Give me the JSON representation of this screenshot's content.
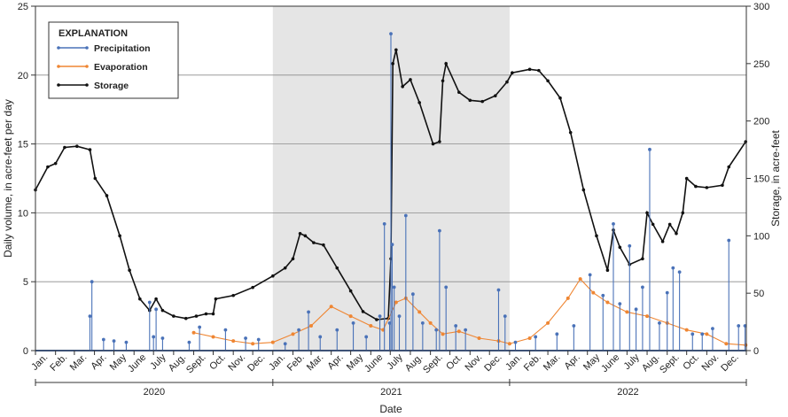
{
  "chart_data": {
    "type": "line",
    "xlabel": "Date",
    "ylabel_left": "Daily volume, in acre-feet per day",
    "ylabel_right": "Storage, in acre-feet",
    "ylim_left": [
      0,
      25
    ],
    "ylim_right": [
      0,
      300
    ],
    "yticks_left": [
      "0",
      "5",
      "10",
      "15",
      "20",
      "25"
    ],
    "yticks_right": [
      "0",
      "50",
      "100",
      "150",
      "200",
      "250",
      "300"
    ],
    "grid": "horizontal",
    "shaded_period": [
      "2021-01-01",
      "2022-01-01"
    ],
    "month_labels": [
      "Jan.",
      "Feb.",
      "Mar.",
      "Apr.",
      "May",
      "June",
      "July",
      "Aug.",
      "Sept.",
      "Oct.",
      "Nov.",
      "Dec."
    ],
    "year_labels": [
      "2020",
      "2021",
      "2022"
    ],
    "legend": {
      "title": "EXPLANATION",
      "position": "top-left",
      "entries": [
        "Precipitation",
        "Evaporation",
        "Storage"
      ]
    },
    "colors": {
      "Precipitation": "#4a72b8",
      "Evaporation": "#ef8633",
      "Storage": "#111111",
      "shade": "#e5e5e5"
    },
    "series": [
      {
        "name": "Storage",
        "axis": "right",
        "x": [
          "2020-01-01",
          "2020-01-20",
          "2020-02-01",
          "2020-02-15",
          "2020-03-05",
          "2020-03-25",
          "2020-04-02",
          "2020-04-20",
          "2020-05-10",
          "2020-05-25",
          "2020-06-10",
          "2020-06-25",
          "2020-07-05",
          "2020-07-15",
          "2020-08-01",
          "2020-08-20",
          "2020-09-05",
          "2020-09-20",
          "2020-10-01",
          "2020-10-05",
          "2020-11-01",
          "2020-12-01",
          "2021-01-01",
          "2021-01-20",
          "2021-02-01",
          "2021-02-12",
          "2021-02-20",
          "2021-03-05",
          "2021-03-20",
          "2021-04-10",
          "2021-05-01",
          "2021-05-20",
          "2021-06-10",
          "2021-06-28",
          "2021-07-02",
          "2021-07-05",
          "2021-07-10",
          "2021-07-20",
          "2021-08-01",
          "2021-08-15",
          "2021-09-05",
          "2021-09-15",
          "2021-09-20",
          "2021-09-25",
          "2021-10-15",
          "2021-11-01",
          "2021-11-20",
          "2021-12-10",
          "2021-12-28",
          "2022-01-05",
          "2022-02-01",
          "2022-02-15",
          "2022-03-01",
          "2022-03-20",
          "2022-04-05",
          "2022-04-25",
          "2022-05-15",
          "2022-06-01",
          "2022-06-10",
          "2022-06-20",
          "2022-07-05",
          "2022-07-25",
          "2022-08-01",
          "2022-08-10",
          "2022-08-25",
          "2022-09-05",
          "2022-09-15",
          "2022-09-25",
          "2022-10-01",
          "2022-10-15",
          "2022-11-01",
          "2022-11-25",
          "2022-12-05",
          "2022-12-31"
        ],
        "values": [
          140,
          160,
          163,
          177,
          178,
          175,
          150,
          135,
          100,
          70,
          45,
          35,
          45,
          35,
          30,
          28,
          30,
          32,
          32,
          45,
          48,
          55,
          65,
          72,
          80,
          102,
          100,
          94,
          92,
          72,
          52,
          34,
          27,
          28,
          80,
          250,
          262,
          230,
          236,
          216,
          180,
          182,
          235,
          250,
          225,
          218,
          217,
          222,
          234,
          242,
          245,
          244,
          235,
          220,
          190,
          140,
          100,
          70,
          105,
          90,
          75,
          80,
          120,
          110,
          95,
          110,
          102,
          120,
          150,
          143,
          142,
          144,
          160,
          182
        ]
      },
      {
        "name": "Evaporation",
        "axis": "left",
        "x": [
          "2020-09-01",
          "2020-10-01",
          "2020-11-01",
          "2020-12-01",
          "2021-01-01",
          "2021-02-01",
          "2021-03-01",
          "2021-04-01",
          "2021-05-01",
          "2021-06-01",
          "2021-06-20",
          "2021-07-10",
          "2021-07-25",
          "2021-08-15",
          "2021-09-01",
          "2021-09-20",
          "2021-10-15",
          "2021-11-15",
          "2021-12-15",
          "2022-01-01",
          "2022-02-01",
          "2022-03-01",
          "2022-04-01",
          "2022-04-20",
          "2022-05-10",
          "2022-06-01",
          "2022-07-01",
          "2022-08-01",
          "2022-09-01",
          "2022-10-01",
          "2022-11-01",
          "2022-12-01",
          "2022-12-31"
        ],
        "values": [
          1.3,
          1.0,
          0.7,
          0.5,
          0.6,
          1.2,
          1.8,
          3.2,
          2.5,
          1.8,
          1.5,
          3.5,
          3.8,
          2.8,
          2.0,
          1.2,
          1.4,
          0.9,
          0.7,
          0.5,
          0.9,
          2.0,
          3.8,
          5.2,
          4.2,
          3.5,
          2.8,
          2.5,
          2.0,
          1.5,
          1.2,
          0.5,
          0.4
        ]
      },
      {
        "name": "Precipitation",
        "axis": "left",
        "x": [
          "2020-03-25",
          "2020-03-28",
          "2020-04-15",
          "2020-05-01",
          "2020-05-20",
          "2020-06-25",
          "2020-07-01",
          "2020-07-05",
          "2020-07-15",
          "2020-08-25",
          "2020-09-10",
          "2020-10-20",
          "2020-11-20",
          "2020-12-10",
          "2021-01-20",
          "2021-02-10",
          "2021-02-25",
          "2021-03-15",
          "2021-04-10",
          "2021-05-05",
          "2021-05-25",
          "2021-06-15",
          "2021-06-22",
          "2021-06-30",
          "2021-07-02",
          "2021-07-04",
          "2021-07-07",
          "2021-07-15",
          "2021-07-25",
          "2021-08-05",
          "2021-08-20",
          "2021-09-10",
          "2021-09-15",
          "2021-09-25",
          "2021-10-10",
          "2021-10-25",
          "2021-12-15",
          "2021-12-25",
          "2022-01-10",
          "2022-02-10",
          "2022-03-15",
          "2022-04-10",
          "2022-05-05",
          "2022-05-25",
          "2022-06-10",
          "2022-06-20",
          "2022-07-05",
          "2022-07-15",
          "2022-07-25",
          "2022-08-05",
          "2022-08-20",
          "2022-09-01",
          "2022-09-10",
          "2022-09-20",
          "2022-10-10",
          "2022-10-25",
          "2022-11-10",
          "2022-12-05",
          "2022-12-20",
          "2022-12-30"
        ],
        "values": [
          2.5,
          5.0,
          0.8,
          0.7,
          0.6,
          3.5,
          1.0,
          3.0,
          0.9,
          0.6,
          1.7,
          1.5,
          0.9,
          0.8,
          0.5,
          1.5,
          2.8,
          1.0,
          1.5,
          2.0,
          1.0,
          2.5,
          9.2,
          2.0,
          23.0,
          7.7,
          4.6,
          2.5,
          9.8,
          4.1,
          2.0,
          1.5,
          8.7,
          4.6,
          1.8,
          1.5,
          4.4,
          2.5,
          0.6,
          1.0,
          1.2,
          1.8,
          5.5,
          4.0,
          9.2,
          3.4,
          7.6,
          3.0,
          4.6,
          14.6,
          2.0,
          4.2,
          6.0,
          5.7,
          1.2,
          1.2,
          1.6,
          8.0,
          1.8,
          1.8
        ]
      }
    ]
  }
}
